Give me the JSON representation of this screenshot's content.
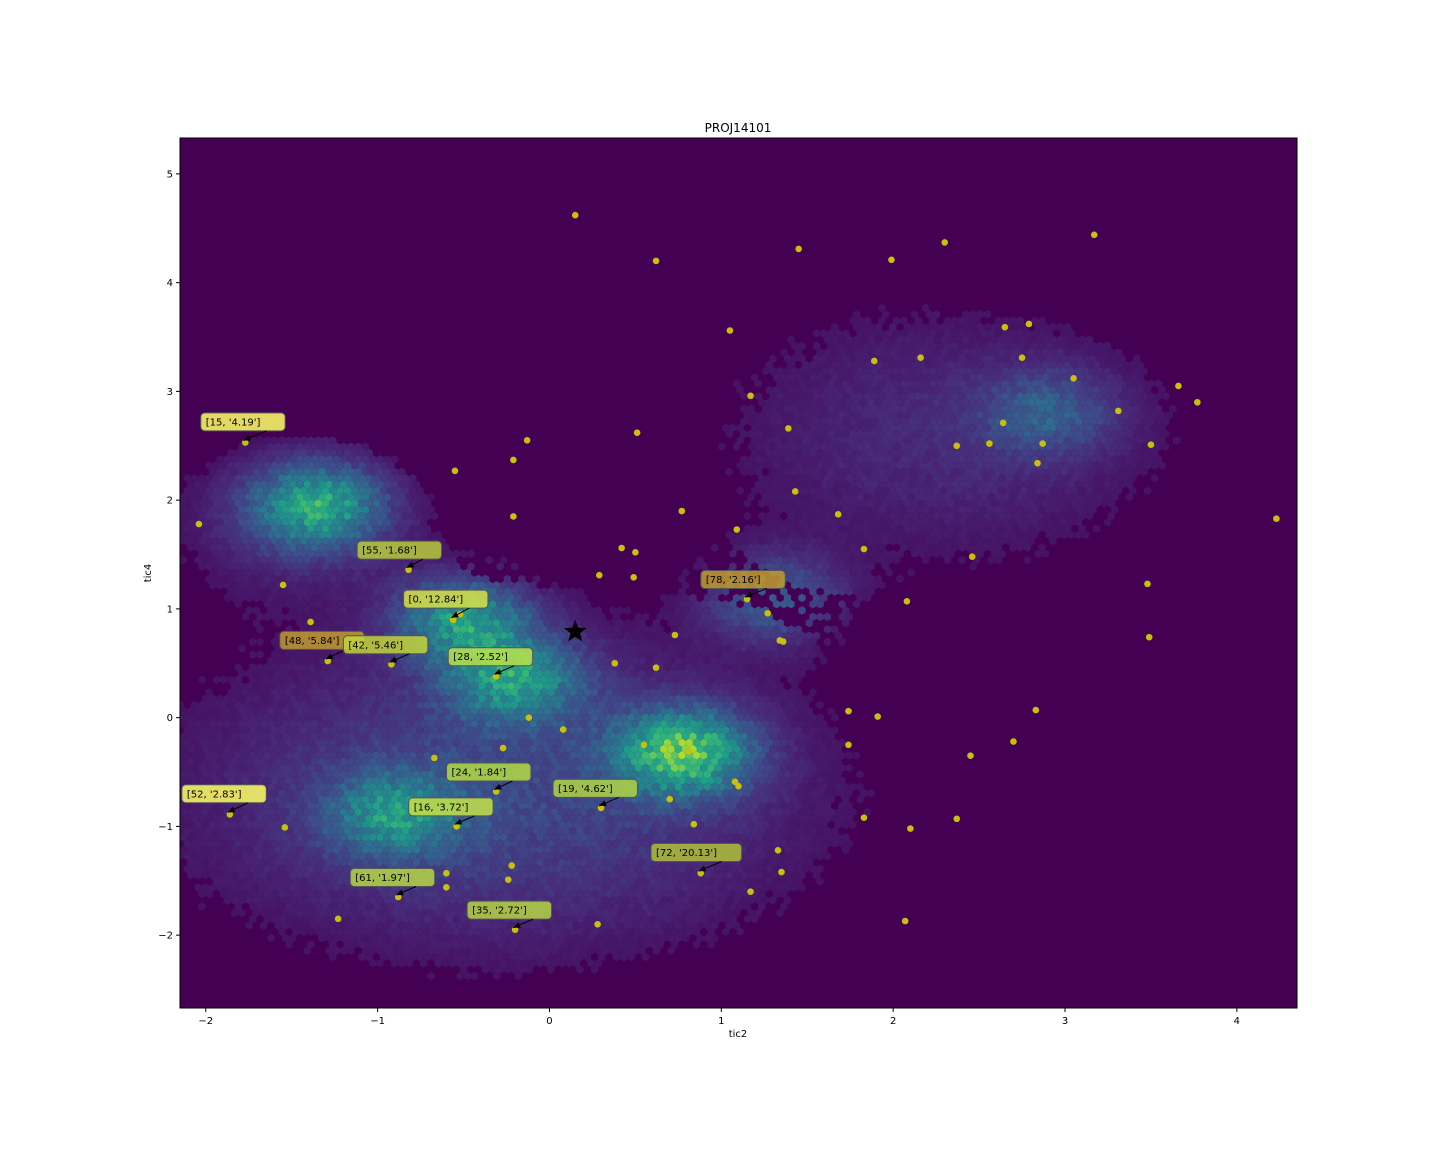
{
  "chart_data": {
    "type": "scatter",
    "title": "PROJ14101",
    "xlabel": "tic2",
    "ylabel": "tic4",
    "xlim": [
      -2.15,
      4.35
    ],
    "ylim": [
      -2.67,
      5.33
    ],
    "xticks": [
      -2,
      -1,
      0,
      1,
      2,
      3,
      4
    ],
    "yticks": [
      -2,
      -1,
      0,
      1,
      2,
      3,
      4,
      5
    ],
    "xtick_labels": [
      "−2",
      "−1",
      "0",
      "1",
      "2",
      "3",
      "4"
    ],
    "ytick_labels": [
      "−2",
      "−1",
      "0",
      "1",
      "2",
      "3",
      "4",
      "5"
    ],
    "background_color": "#440154",
    "point_color": "#c8c00c",
    "annotation_box_color": "#ffff66",
    "density_colormap": "viridis",
    "density_clusters": [
      {
        "x": -1.35,
        "y": 1.95,
        "weight": 0.8
      },
      {
        "x": 0.78,
        "y": -0.32,
        "weight": 1.0
      },
      {
        "x": -0.5,
        "y": 0.9,
        "weight": 0.75
      },
      {
        "x": -0.2,
        "y": 0.35,
        "weight": 0.7
      },
      {
        "x": -0.9,
        "y": -0.9,
        "weight": 0.6
      },
      {
        "x": 1.3,
        "y": 1.1,
        "weight": 0.45
      },
      {
        "x": 2.9,
        "y": 2.8,
        "weight": 0.35
      }
    ],
    "star": {
      "x": 0.15,
      "y": 0.79
    },
    "points": [
      {
        "x": 0.15,
        "y": 4.62
      },
      {
        "x": 0.62,
        "y": 4.2
      },
      {
        "x": 1.45,
        "y": 4.31
      },
      {
        "x": 1.99,
        "y": 4.21
      },
      {
        "x": 2.3,
        "y": 4.37
      },
      {
        "x": 3.17,
        "y": 4.44
      },
      {
        "x": 1.05,
        "y": 3.56
      },
      {
        "x": 1.17,
        "y": 2.96
      },
      {
        "x": 1.89,
        "y": 3.28
      },
      {
        "x": 2.16,
        "y": 3.31
      },
      {
        "x": 2.65,
        "y": 3.59
      },
      {
        "x": 2.79,
        "y": 3.62
      },
      {
        "x": 2.75,
        "y": 3.31
      },
      {
        "x": 3.05,
        "y": 3.12
      },
      {
        "x": 3.66,
        "y": 3.05
      },
      {
        "x": 3.77,
        "y": 2.9
      },
      {
        "x": 3.31,
        "y": 2.82
      },
      {
        "x": 3.5,
        "y": 2.51
      },
      {
        "x": 2.64,
        "y": 2.71
      },
      {
        "x": 2.56,
        "y": 2.52
      },
      {
        "x": 2.37,
        "y": 2.5
      },
      {
        "x": 2.87,
        "y": 2.52
      },
      {
        "x": 2.84,
        "y": 2.34
      },
      {
        "x": 1.39,
        "y": 2.66
      },
      {
        "x": 0.51,
        "y": 2.62
      },
      {
        "x": -0.13,
        "y": 2.55
      },
      {
        "x": -0.21,
        "y": 2.37
      },
      {
        "x": -0.55,
        "y": 2.27
      },
      {
        "x": 1.43,
        "y": 2.08
      },
      {
        "x": 0.77,
        "y": 1.9
      },
      {
        "x": -0.21,
        "y": 1.85
      },
      {
        "x": 1.68,
        "y": 1.87
      },
      {
        "x": 1.09,
        "y": 1.73
      },
      {
        "x": 0.42,
        "y": 1.56
      },
      {
        "x": 0.5,
        "y": 1.52
      },
      {
        "x": 1.83,
        "y": 1.55
      },
      {
        "x": 2.46,
        "y": 1.48
      },
      {
        "x": 4.23,
        "y": 1.83
      },
      {
        "x": -2.04,
        "y": 1.78
      },
      {
        "x": -1.55,
        "y": 1.22
      },
      {
        "x": 0.29,
        "y": 1.31
      },
      {
        "x": 0.49,
        "y": 1.29
      },
      {
        "x": 3.48,
        "y": 1.23
      },
      {
        "x": 2.08,
        "y": 1.07
      },
      {
        "x": 1.27,
        "y": 0.96
      },
      {
        "x": -0.52,
        "y": 0.95
      },
      {
        "x": -1.39,
        "y": 0.88
      },
      {
        "x": 0.73,
        "y": 0.76
      },
      {
        "x": 1.34,
        "y": 0.71
      },
      {
        "x": 1.36,
        "y": 0.7
      },
      {
        "x": 3.49,
        "y": 0.74
      },
      {
        "x": 0.38,
        "y": 0.5
      },
      {
        "x": 0.62,
        "y": 0.46
      },
      {
        "x": -0.12,
        "y": 0.0
      },
      {
        "x": 1.74,
        "y": 0.06
      },
      {
        "x": 1.91,
        "y": 0.01
      },
      {
        "x": 2.83,
        "y": 0.07
      },
      {
        "x": 0.08,
        "y": -0.11
      },
      {
        "x": -0.27,
        "y": -0.28
      },
      {
        "x": 0.55,
        "y": -0.25
      },
      {
        "x": 0.81,
        "y": -0.31
      },
      {
        "x": 1.74,
        "y": -0.25
      },
      {
        "x": 2.7,
        "y": -0.22
      },
      {
        "x": 2.45,
        "y": -0.35
      },
      {
        "x": -0.67,
        "y": -0.37
      },
      {
        "x": 1.08,
        "y": -0.59
      },
      {
        "x": 1.1,
        "y": -0.63
      },
      {
        "x": 0.7,
        "y": -0.75
      },
      {
        "x": 0.84,
        "y": -0.98
      },
      {
        "x": 1.83,
        "y": -0.92
      },
      {
        "x": 2.37,
        "y": -0.93
      },
      {
        "x": 2.1,
        "y": -1.02
      },
      {
        "x": -1.54,
        "y": -1.01
      },
      {
        "x": 1.33,
        "y": -1.22
      },
      {
        "x": -0.22,
        "y": -1.36
      },
      {
        "x": -0.6,
        "y": -1.43
      },
      {
        "x": 1.35,
        "y": -1.42
      },
      {
        "x": -0.24,
        "y": -1.49
      },
      {
        "x": -0.6,
        "y": -1.56
      },
      {
        "x": 1.17,
        "y": -1.6
      },
      {
        "x": -1.23,
        "y": -1.85
      },
      {
        "x": 0.28,
        "y": -1.9
      },
      {
        "x": 2.07,
        "y": -1.87
      }
    ],
    "annotations": [
      {
        "label": "[15, '4.19']",
        "x": -1.77,
        "y": 2.53,
        "lx": -2.0,
        "ly": 2.72,
        "color": "#ffff66"
      },
      {
        "label": "[55, '1.68']",
        "x": -0.82,
        "y": 1.36,
        "lx": -1.09,
        "ly": 1.54,
        "color": "#b9ca3c"
      },
      {
        "label": "[0, '12.84']",
        "x": -0.56,
        "y": 0.9,
        "lx": -0.82,
        "ly": 1.09,
        "color": "#d9e04a"
      },
      {
        "label": "[78, '2.16']",
        "x": 1.15,
        "y": 1.09,
        "lx": 0.91,
        "ly": 1.27,
        "color": "#bf9c30"
      },
      {
        "label": "[48, '5.84']",
        "x": -1.29,
        "y": 0.52,
        "lx": -1.54,
        "ly": 0.71,
        "color": "#bf9c30"
      },
      {
        "label": "[42, '5.46']",
        "x": -0.92,
        "y": 0.49,
        "lx": -1.17,
        "ly": 0.67,
        "color": "#c2d43c"
      },
      {
        "label": "[28, '2.52']",
        "x": -0.31,
        "y": 0.38,
        "lx": -0.56,
        "ly": 0.56,
        "color": "#b9e04e"
      },
      {
        "label": "[24, '1.84']",
        "x": -0.31,
        "y": -0.68,
        "lx": -0.57,
        "ly": -0.5,
        "color": "#b3da45"
      },
      {
        "label": "[19, '4.62']",
        "x": 0.3,
        "y": -0.83,
        "lx": 0.05,
        "ly": -0.65,
        "color": "#b0d448"
      },
      {
        "label": "[52, '2.83']",
        "x": -1.86,
        "y": -0.89,
        "lx": -2.11,
        "ly": -0.7,
        "color": "#ffff66"
      },
      {
        "label": "[16, '3.72']",
        "x": -0.54,
        "y": -1.0,
        "lx": -0.79,
        "ly": -0.82,
        "color": "#c6e04a"
      },
      {
        "label": "[72, '20.13']",
        "x": 0.88,
        "y": -1.43,
        "lx": 0.62,
        "ly": -1.24,
        "color": "#b0bf3a"
      },
      {
        "label": "[61, '1.97']",
        "x": -0.88,
        "y": -1.65,
        "lx": -1.13,
        "ly": -1.47,
        "color": "#b6d545"
      },
      {
        "label": "[35, '2.72']",
        "x": -0.2,
        "y": -1.95,
        "lx": -0.45,
        "ly": -1.77,
        "color": "#b6d545"
      }
    ]
  }
}
